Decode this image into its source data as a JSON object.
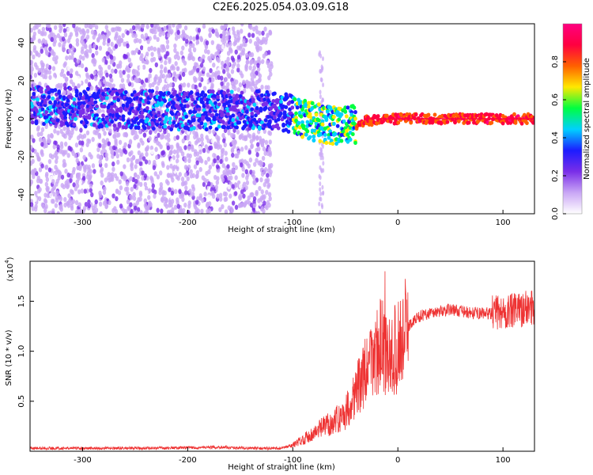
{
  "figure_title": "C2E6.2025.054.03.09.G18",
  "chart_data": [
    {
      "type": "heatmap",
      "title": "",
      "xlabel": "Height of straight line (km)",
      "ylabel": "Frequency (Hz)",
      "xlim": [
        -350,
        130
      ],
      "ylim": [
        -50,
        50
      ],
      "x_ticks": [
        -300,
        -200,
        -100,
        0,
        100
      ],
      "y_ticks": [
        -40,
        -20,
        0,
        20,
        40
      ],
      "colorbar": {
        "label": "Normalized spectral amplitude",
        "range": [
          0,
          1
        ],
        "ticks": [
          0.0,
          0.2,
          0.4,
          0.6,
          0.8
        ],
        "colors": [
          "#ffffff",
          "#c9a6f5",
          "#7a2ee8",
          "#1c1cff",
          "#00d0ff",
          "#00ff40",
          "#ffe800",
          "#ff6000",
          "#ff0040",
          "#ff0080"
        ]
      },
      "signal_track": [
        {
          "x": -350,
          "y": 7
        },
        {
          "x": -300,
          "y": 6
        },
        {
          "x": -250,
          "y": 5
        },
        {
          "x": -200,
          "y": 4
        },
        {
          "x": -150,
          "y": 5
        },
        {
          "x": -110,
          "y": 4
        },
        {
          "x": -90,
          "y": 0
        },
        {
          "x": -70,
          "y": -3
        },
        {
          "x": -55,
          "y": -4
        },
        {
          "x": -40,
          "y": -3
        },
        {
          "x": -30,
          "y": -1
        },
        {
          "x": 0,
          "y": 0
        },
        {
          "x": 50,
          "y": 0
        },
        {
          "x": 100,
          "y": 0
        },
        {
          "x": 130,
          "y": 0
        }
      ]
    },
    {
      "type": "line",
      "title": "",
      "xlabel": "Height of straight line (km)",
      "ylabel": "SNR (10 * v/v)",
      "scale_note": "(x10",
      "scale_exp": "4",
      "scale_close": ")",
      "xlim": [
        -350,
        130
      ],
      "ylim": [
        0,
        1.9
      ],
      "x_ticks": [
        -300,
        -200,
        -100,
        0,
        100
      ],
      "y_ticks": [
        0.5,
        1.0,
        1.5
      ],
      "series": [
        {
          "color": "#ee3333",
          "x": [
            -350,
            -300,
            -250,
            -200,
            -170,
            -140,
            -110,
            -100,
            -90,
            -80,
            -70,
            -60,
            -50,
            -40,
            -30,
            -20,
            -15,
            -10,
            0,
            10,
            20,
            30,
            50,
            70,
            90,
            110,
            130
          ],
          "y": [
            0.03,
            0.03,
            0.03,
            0.035,
            0.04,
            0.03,
            0.03,
            0.06,
            0.12,
            0.18,
            0.25,
            0.3,
            0.38,
            0.6,
            0.8,
            1.0,
            1.1,
            0.9,
            1.05,
            1.25,
            1.35,
            1.38,
            1.42,
            1.38,
            1.38,
            1.4,
            1.45
          ]
        }
      ]
    }
  ]
}
